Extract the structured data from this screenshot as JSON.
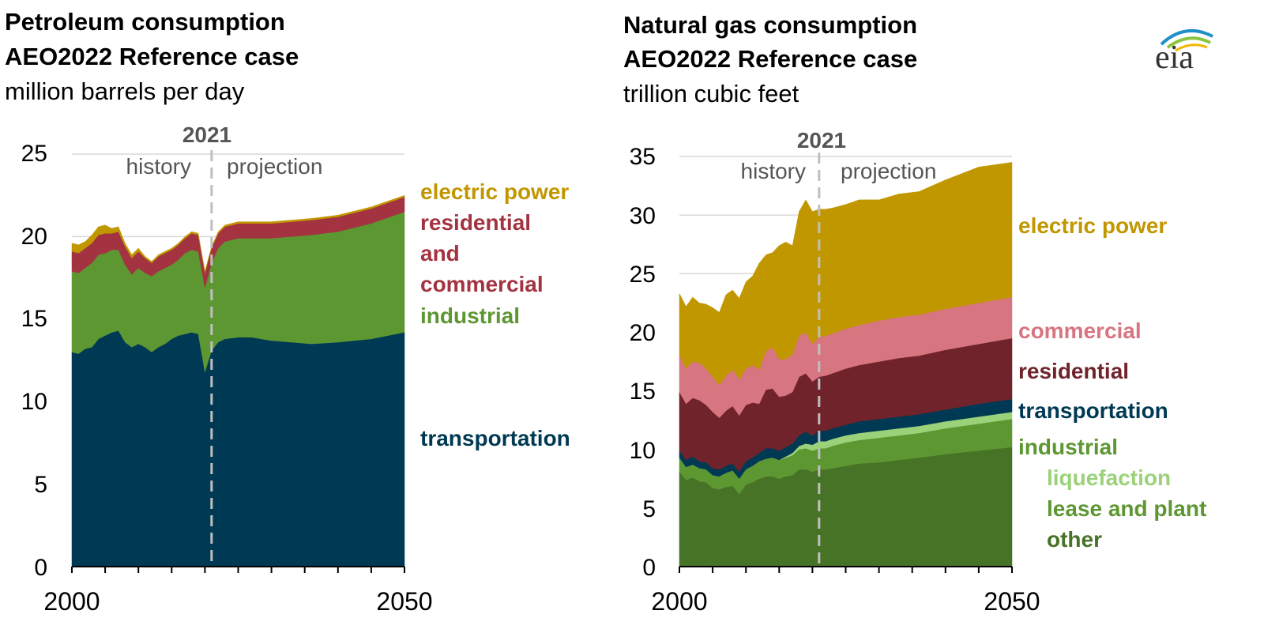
{
  "chart_data": [
    {
      "type": "area",
      "title": "Petroleum consumption",
      "subtitle": "AEO2022 Reference case",
      "unit": "million barrels per day",
      "ylim": [
        0,
        25
      ],
      "yticks": [
        "0",
        "5",
        "10",
        "15",
        "20",
        "25"
      ],
      "xlim": [
        2000,
        2050
      ],
      "xticks": [
        "2000",
        "2050"
      ],
      "divider": {
        "year": 2021,
        "label": "2021",
        "left_label": "history",
        "right_label": "projection"
      },
      "grid": true,
      "x": [
        2000,
        2001,
        2002,
        2003,
        2004,
        2005,
        2006,
        2007,
        2008,
        2009,
        2010,
        2011,
        2012,
        2013,
        2014,
        2015,
        2016,
        2017,
        2018,
        2019,
        2020,
        2021,
        2022,
        2023,
        2025,
        2027,
        2030,
        2033,
        2036,
        2040,
        2045,
        2050
      ],
      "series": [
        {
          "name": "transportation",
          "color": "#003953",
          "values": [
            13.0,
            12.9,
            13.2,
            13.3,
            13.8,
            14.0,
            14.2,
            14.3,
            13.6,
            13.3,
            13.5,
            13.3,
            13.0,
            13.3,
            13.5,
            13.8,
            14.0,
            14.1,
            14.2,
            14.1,
            11.8,
            13.1,
            13.6,
            13.8,
            13.9,
            13.9,
            13.7,
            13.6,
            13.5,
            13.6,
            13.8,
            14.2
          ]
        },
        {
          "name": "industrial",
          "color": "#5d9732",
          "values": [
            4.9,
            4.9,
            4.9,
            5.1,
            5.1,
            5.0,
            5.0,
            4.9,
            4.7,
            4.4,
            4.6,
            4.5,
            4.6,
            4.6,
            4.6,
            4.5,
            4.6,
            4.9,
            5.0,
            5.0,
            5.1,
            5.3,
            5.7,
            5.9,
            6.0,
            6.0,
            6.2,
            6.4,
            6.6,
            6.7,
            7.0,
            7.3
          ]
        },
        {
          "name": "residential and commercial",
          "color": "#a33340",
          "values": [
            1.2,
            1.2,
            1.2,
            1.2,
            1.2,
            1.2,
            1.0,
            1.1,
            1.1,
            1.0,
            1.0,
            0.9,
            0.8,
            0.9,
            0.9,
            0.9,
            0.9,
            0.9,
            1.0,
            1.0,
            0.9,
            0.9,
            0.9,
            0.9,
            0.9,
            0.9,
            0.9,
            0.9,
            0.9,
            0.9,
            0.9,
            0.9
          ]
        },
        {
          "name": "electric power",
          "color": "#c19700",
          "values": [
            0.5,
            0.5,
            0.4,
            0.5,
            0.5,
            0.5,
            0.3,
            0.3,
            0.2,
            0.2,
            0.2,
            0.1,
            0.1,
            0.1,
            0.1,
            0.1,
            0.1,
            0.1,
            0.1,
            0.1,
            0.1,
            0.1,
            0.1,
            0.1,
            0.1,
            0.1,
            0.1,
            0.1,
            0.1,
            0.1,
            0.1,
            0.1
          ]
        }
      ],
      "labels": [
        {
          "text": "electric power",
          "color": "#c19700"
        },
        {
          "text": "residential",
          "color": "#a33340"
        },
        {
          "text": "and",
          "color": "#a33340"
        },
        {
          "text": "commercial",
          "color": "#a33340"
        },
        {
          "text": "industrial",
          "color": "#5d9732"
        },
        {
          "text": "transportation",
          "color": "#003953"
        }
      ]
    },
    {
      "type": "area",
      "title": "Natural gas consumption",
      "subtitle": "AEO2022 Reference case",
      "unit": "trillion cubic feet",
      "ylim": [
        0,
        35
      ],
      "yticks": [
        "0",
        "5",
        "10",
        "15",
        "20",
        "25",
        "30",
        "35"
      ],
      "xlim": [
        2000,
        2050
      ],
      "xticks": [
        "2000",
        "2050"
      ],
      "divider": {
        "year": 2021,
        "label": "2021",
        "left_label": "history",
        "right_label": "projection"
      },
      "grid": true,
      "x": [
        2000,
        2001,
        2002,
        2003,
        2004,
        2005,
        2006,
        2007,
        2008,
        2009,
        2010,
        2011,
        2012,
        2013,
        2014,
        2015,
        2016,
        2017,
        2018,
        2019,
        2020,
        2021,
        2022,
        2023,
        2025,
        2027,
        2030,
        2033,
        2036,
        2040,
        2045,
        2050
      ],
      "series": [
        {
          "name": "other",
          "color": "#477326",
          "values": [
            8.1,
            7.4,
            7.6,
            7.3,
            7.2,
            6.7,
            6.6,
            6.8,
            6.9,
            6.2,
            7.0,
            7.2,
            7.5,
            7.7,
            7.7,
            7.5,
            7.7,
            7.8,
            8.3,
            8.3,
            8.1,
            8.3,
            8.3,
            8.4,
            8.6,
            8.8,
            8.9,
            9.1,
            9.3,
            9.6,
            9.9,
            10.2
          ]
        },
        {
          "name": "lease and plant",
          "color": "#5d9732",
          "values": [
            1.2,
            1.1,
            1.1,
            1.1,
            1.1,
            1.1,
            1.1,
            1.2,
            1.3,
            1.3,
            1.3,
            1.4,
            1.5,
            1.5,
            1.6,
            1.6,
            1.6,
            1.7,
            1.7,
            1.8,
            1.8,
            1.8,
            1.8,
            1.9,
            2.0,
            2.0,
            2.1,
            2.1,
            2.1,
            2.2,
            2.3,
            2.4
          ]
        },
        {
          "name": "liquefaction",
          "color": "#9bd279",
          "values": [
            0.0,
            0.0,
            0.0,
            0.0,
            0.0,
            0.0,
            0.0,
            0.0,
            0.0,
            0.0,
            0.0,
            0.0,
            0.0,
            0.0,
            0.0,
            0.0,
            0.1,
            0.2,
            0.3,
            0.4,
            0.5,
            0.6,
            0.6,
            0.6,
            0.6,
            0.6,
            0.6,
            0.6,
            0.6,
            0.6,
            0.6,
            0.6
          ]
        },
        {
          "name": "transportation",
          "color": "#003953",
          "values": [
            0.6,
            0.6,
            0.7,
            0.6,
            0.6,
            0.6,
            0.6,
            0.6,
            0.6,
            0.6,
            0.7,
            0.7,
            0.7,
            0.9,
            0.8,
            0.8,
            0.8,
            0.8,
            0.9,
            1.0,
            0.8,
            0.9,
            0.9,
            0.9,
            0.9,
            1.0,
            1.0,
            1.0,
            1.0,
            1.0,
            1.1,
            1.1
          ]
        },
        {
          "name": "residential",
          "color": "#70232a",
          "values": [
            5.0,
            4.8,
            5.0,
            5.2,
            4.9,
            4.8,
            4.4,
            4.7,
            4.9,
            4.8,
            4.8,
            4.7,
            4.2,
            5.0,
            5.1,
            4.6,
            4.4,
            4.4,
            5.0,
            5.0,
            4.6,
            4.6,
            4.7,
            4.7,
            4.8,
            4.8,
            4.9,
            5.0,
            5.0,
            5.1,
            5.1,
            5.2
          ]
        },
        {
          "name": "commercial",
          "color": "#d77580",
          "values": [
            3.2,
            3.0,
            3.1,
            3.2,
            3.1,
            3.0,
            2.8,
            3.0,
            3.1,
            3.1,
            3.1,
            3.2,
            2.9,
            3.3,
            3.5,
            3.2,
            3.1,
            3.2,
            3.5,
            3.5,
            3.2,
            3.4,
            3.4,
            3.4,
            3.4,
            3.4,
            3.5,
            3.5,
            3.5,
            3.5,
            3.5,
            3.5
          ]
        },
        {
          "name": "electric power",
          "color": "#c19700",
          "values": [
            5.2,
            5.3,
            5.5,
            5.1,
            5.5,
            5.9,
            6.2,
            6.9,
            6.8,
            6.9,
            7.4,
            7.6,
            9.1,
            8.2,
            8.1,
            9.7,
            10.0,
            9.3,
            10.6,
            11.3,
            11.3,
            10.9,
            10.8,
            10.7,
            10.6,
            10.7,
            10.3,
            10.5,
            10.5,
            11.0,
            11.6,
            11.5
          ]
        }
      ],
      "labels": [
        {
          "text": "electric power",
          "color": "#c19700"
        },
        {
          "text": "commercial",
          "color": "#d77580"
        },
        {
          "text": "residential",
          "color": "#70232a"
        },
        {
          "text": "transportation",
          "color": "#003953"
        },
        {
          "text": "industrial",
          "color": "#5d9732"
        },
        {
          "text": "liquefaction",
          "color": "#9bd279"
        },
        {
          "text": "lease and plant",
          "color": "#5d9732"
        },
        {
          "text": "other",
          "color": "#477326"
        }
      ]
    }
  ],
  "logo": {
    "text": "eia",
    "icon": "eia-logo-arc-icon"
  }
}
